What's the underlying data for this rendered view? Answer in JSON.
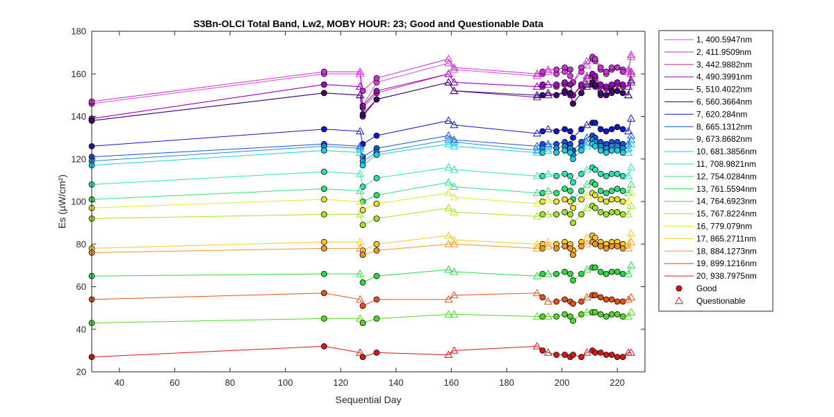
{
  "chart_data": {
    "type": "line",
    "title": "S3Bn-OLCI Total Band,  Lw2, MOBY HOUR: 23;  Good and Questionable Data",
    "xlabel": "Sequential Day",
    "ylabel": "Es (µW/cm²)",
    "xlim": [
      30,
      230
    ],
    "ylim": [
      20,
      180
    ],
    "xticks": [
      40,
      60,
      80,
      100,
      120,
      140,
      160,
      180,
      200,
      220
    ],
    "yticks": [
      20,
      40,
      60,
      80,
      100,
      120,
      140,
      160,
      180
    ],
    "grid": false,
    "legend_position": "outside-right",
    "x": [
      30,
      114,
      127,
      128,
      133,
      159,
      161,
      191,
      193,
      195,
      198,
      201,
      203,
      204,
      207,
      209,
      211,
      212,
      214,
      216,
      218,
      220,
      222,
      224,
      225
    ],
    "quality": [
      "Good",
      "Good",
      "Questionable",
      "Good",
      "Good",
      "Questionable",
      "Questionable",
      "Questionable",
      "Good",
      "Questionable",
      "Good",
      "Good",
      "Good",
      "Good",
      "Good",
      "Questionable",
      "Good",
      "Good",
      "Good",
      "Good",
      "Good",
      "Good",
      "Good",
      "Questionable",
      "Questionable"
    ],
    "marker_legend": {
      "good_label": "Good",
      "questionable_label": "Questionable"
    },
    "series": [
      {
        "name": "1, 400.5947nm",
        "color": "#e040e0",
        "values": [
          146,
          160,
          160,
          145,
          156,
          165,
          162,
          159,
          160,
          161,
          160,
          161,
          159,
          156,
          161,
          164,
          167,
          166,
          162,
          160,
          162,
          163,
          162,
          162,
          168
        ]
      },
      {
        "name": "2, 411.9509nm",
        "color": "#c832d2",
        "values": [
          147,
          161,
          161,
          152,
          158,
          167,
          163,
          160,
          161,
          162,
          162,
          163,
          162,
          156,
          163,
          166,
          168,
          167,
          163,
          161,
          163,
          163,
          161,
          161,
          169
        ]
      },
      {
        "name": "3, 442.9882nm",
        "color": "#c8288c",
        "values": [
          139,
          155,
          154,
          144,
          151,
          160,
          156,
          154,
          154,
          155,
          154,
          155,
          155,
          150,
          154,
          158,
          159,
          158,
          154,
          153,
          154,
          155,
          154,
          154,
          160
        ]
      },
      {
        "name": "4, 490.3991nm",
        "color": "#a000c8",
        "values": [
          139,
          155,
          154,
          145,
          152,
          160,
          156,
          154,
          155,
          155,
          155,
          156,
          155,
          150,
          155,
          159,
          160,
          159,
          155,
          154,
          155,
          156,
          155,
          154,
          161
        ]
      },
      {
        "name": "5, 510.4022nm",
        "color": "#780096",
        "values": [
          138,
          151,
          150,
          140,
          148,
          156,
          152,
          149,
          150,
          150,
          150,
          151,
          150,
          146,
          151,
          154,
          155,
          154,
          150,
          150,
          151,
          152,
          151,
          150,
          156
        ]
      },
      {
        "name": "6, 560.3664nm",
        "color": "#3c0078",
        "values": [
          138,
          151,
          150,
          141,
          148,
          156,
          152,
          150,
          150,
          151,
          150,
          152,
          151,
          146,
          151,
          155,
          156,
          155,
          151,
          150,
          152,
          152,
          151,
          150,
          157
        ]
      },
      {
        "name": "7,  620.284nm",
        "color": "#1414c8",
        "values": [
          126,
          134,
          133,
          127,
          131,
          138,
          136,
          132,
          133,
          134,
          133,
          134,
          133,
          130,
          134,
          136,
          137,
          137,
          134,
          133,
          134,
          135,
          134,
          133,
          139
        ]
      },
      {
        "name": "8, 665.1312nm",
        "color": "#1450dc",
        "values": [
          121,
          127,
          126,
          121,
          125,
          131,
          129,
          126,
          127,
          127,
          127,
          128,
          127,
          124,
          128,
          130,
          131,
          130,
          128,
          127,
          128,
          128,
          127,
          127,
          131
        ]
      },
      {
        "name": "9, 673.8682nm",
        "color": "#1e8cdc",
        "values": [
          119,
          126,
          125,
          119,
          123,
          129,
          128,
          124,
          125,
          126,
          125,
          126,
          125,
          122,
          126,
          128,
          129,
          128,
          126,
          125,
          126,
          126,
          125,
          125,
          129
        ]
      },
      {
        "name": "10, 681.3856nm",
        "color": "#14d2e6",
        "values": [
          117,
          124,
          123,
          117,
          122,
          127,
          126,
          123,
          123,
          124,
          123,
          124,
          123,
          120,
          124,
          126,
          127,
          126,
          124,
          123,
          124,
          124,
          123,
          123,
          127
        ]
      },
      {
        "name": "11, 708.9821nm",
        "color": "#28e6b4",
        "values": [
          108,
          114,
          113,
          107,
          111,
          116,
          115,
          112,
          112,
          113,
          112,
          113,
          112,
          109,
          113,
          115,
          116,
          115,
          113,
          112,
          113,
          113,
          112,
          112,
          116
        ]
      },
      {
        "name": "12, 754.0284nm",
        "color": "#28e678",
        "values": [
          101,
          106,
          105,
          100,
          103,
          109,
          107,
          104,
          104,
          105,
          104,
          106,
          105,
          101,
          105,
          108,
          109,
          108,
          105,
          104,
          105,
          106,
          105,
          104,
          108
        ]
      },
      {
        "name": "13, 761.5594nm",
        "color": "#28dc3c",
        "values": [
          65,
          66,
          66,
          62,
          65,
          68,
          67,
          65,
          66,
          66,
          66,
          67,
          66,
          63,
          66,
          68,
          69,
          69,
          67,
          66,
          67,
          67,
          66,
          66,
          70
        ]
      },
      {
        "name": "14, 764.6923nm",
        "color": "#50dc1e",
        "values": [
          43,
          45,
          45,
          43,
          45,
          47,
          47,
          46,
          46,
          46,
          46,
          47,
          46,
          44,
          47,
          48,
          48,
          48,
          47,
          46,
          47,
          47,
          46,
          46,
          48
        ]
      },
      {
        "name": "15, 767.8224nm",
        "color": "#a0e61e",
        "values": [
          92,
          94,
          94,
          89,
          92,
          97,
          95,
          93,
          94,
          94,
          94,
          95,
          94,
          90,
          94,
          97,
          98,
          97,
          95,
          94,
          95,
          95,
          94,
          94,
          98
        ]
      },
      {
        "name": "16,  779.079nm",
        "color": "#e6e628",
        "values": [
          97,
          101,
          100,
          96,
          99,
          104,
          102,
          99,
          100,
          101,
          100,
          101,
          100,
          97,
          101,
          103,
          104,
          103,
          101,
          100,
          101,
          101,
          100,
          100,
          104
        ]
      },
      {
        "name": "17, 865.2711nm",
        "color": "#ffc81e",
        "values": [
          78,
          81,
          81,
          77,
          80,
          84,
          82,
          80,
          80,
          81,
          80,
          81,
          80,
          77,
          81,
          83,
          84,
          83,
          81,
          80,
          81,
          81,
          80,
          80,
          85
        ]
      },
      {
        "name": "18, 884.1273nm",
        "color": "#f09628",
        "values": [
          76,
          78,
          78,
          75,
          77,
          80,
          80,
          78,
          78,
          79,
          78,
          79,
          78,
          75,
          79,
          80,
          81,
          80,
          79,
          78,
          79,
          79,
          78,
          78,
          81
        ]
      },
      {
        "name": "19, 899.1216nm",
        "color": "#e65014",
        "values": [
          54,
          57,
          54,
          51,
          54,
          54,
          56,
          57,
          55,
          53,
          53,
          54,
          53,
          52,
          53,
          55,
          56,
          56,
          55,
          54,
          54,
          53,
          53,
          54,
          55
        ]
      },
      {
        "name": "20, 938.7975nm",
        "color": "#dc1414",
        "values": [
          27,
          32,
          29,
          27,
          29,
          28,
          30,
          32,
          30,
          29,
          28,
          28,
          27,
          28,
          27,
          29,
          30,
          29,
          29,
          28,
          28,
          27,
          27,
          29,
          29
        ]
      }
    ]
  }
}
